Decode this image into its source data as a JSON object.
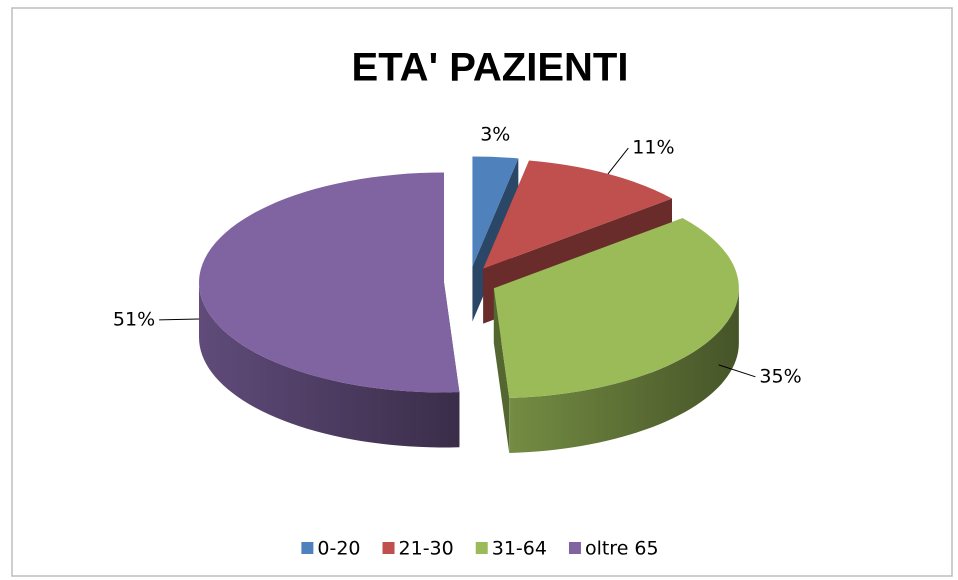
{
  "chart_data": {
    "type": "pie",
    "title": "ETA' PAZIENTI",
    "categories": [
      "0-20",
      "21-30",
      "31-64",
      "oltre 65"
    ],
    "values": [
      3,
      11,
      35,
      51
    ],
    "value_labels": [
      "3%",
      "11%",
      "35%",
      "51%"
    ],
    "colors": [
      "#4f81bd",
      "#c0504d",
      "#9bbb59",
      "#8064a2"
    ],
    "legend": "bottom"
  }
}
